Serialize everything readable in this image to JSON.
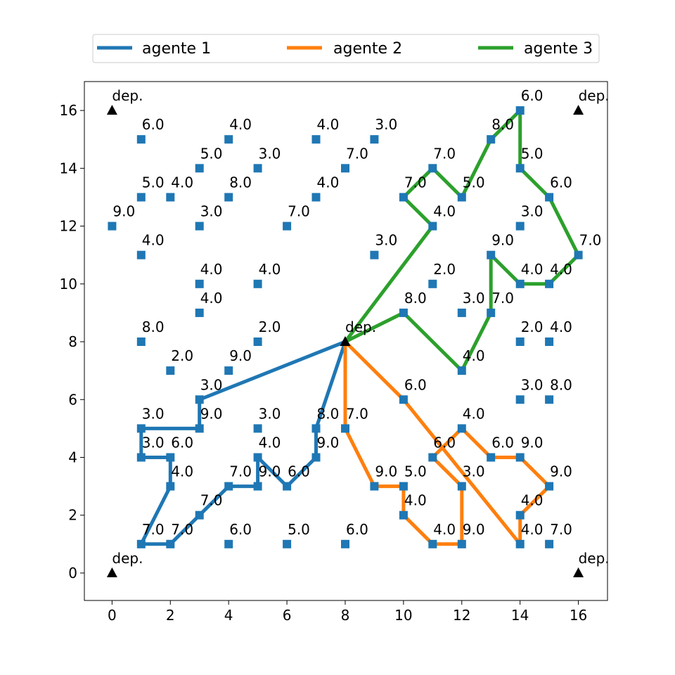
{
  "chart_data": {
    "type": "scatter",
    "xlim": [
      -0.95,
      17.0
    ],
    "ylim": [
      -0.95,
      17.0
    ],
    "x_ticks": [
      "0",
      "2",
      "4",
      "6",
      "8",
      "10",
      "12",
      "14",
      "16"
    ],
    "y_ticks": [
      "0",
      "2",
      "4",
      "6",
      "8",
      "10",
      "12",
      "14",
      "16"
    ],
    "grid": false,
    "legend_position": "top",
    "depots": [
      {
        "x": 0,
        "y": 16,
        "label": "dep."
      },
      {
        "x": 16,
        "y": 16,
        "label": "dep."
      },
      {
        "x": 8,
        "y": 8,
        "label": "dep."
      },
      {
        "x": 0,
        "y": 0,
        "label": "dep."
      },
      {
        "x": 16,
        "y": 0,
        "label": "dep."
      }
    ],
    "points": [
      {
        "x": 1,
        "y": 15,
        "label": "6.0"
      },
      {
        "x": 4,
        "y": 15,
        "label": "4.0"
      },
      {
        "x": 7,
        "y": 15,
        "label": "4.0"
      },
      {
        "x": 9,
        "y": 15,
        "label": "3.0"
      },
      {
        "x": 13,
        "y": 15,
        "label": "8.0"
      },
      {
        "x": 14,
        "y": 16,
        "label": "6.0"
      },
      {
        "x": 3,
        "y": 14,
        "label": "5.0"
      },
      {
        "x": 5,
        "y": 14,
        "label": "3.0"
      },
      {
        "x": 8,
        "y": 14,
        "label": "7.0"
      },
      {
        "x": 11,
        "y": 14,
        "label": "7.0"
      },
      {
        "x": 14,
        "y": 14,
        "label": "5.0"
      },
      {
        "x": 1,
        "y": 13,
        "label": "5.0"
      },
      {
        "x": 2,
        "y": 13,
        "label": "4.0"
      },
      {
        "x": 4,
        "y": 13,
        "label": "8.0"
      },
      {
        "x": 7,
        "y": 13,
        "label": "4.0"
      },
      {
        "x": 10,
        "y": 13,
        "label": "7.0"
      },
      {
        "x": 12,
        "y": 13,
        "label": "5.0"
      },
      {
        "x": 15,
        "y": 13,
        "label": "6.0"
      },
      {
        "x": 0,
        "y": 12,
        "label": "9.0"
      },
      {
        "x": 3,
        "y": 12,
        "label": "3.0"
      },
      {
        "x": 6,
        "y": 12,
        "label": "7.0"
      },
      {
        "x": 11,
        "y": 12,
        "label": "4.0"
      },
      {
        "x": 14,
        "y": 12,
        "label": "3.0"
      },
      {
        "x": 1,
        "y": 11,
        "label": "4.0"
      },
      {
        "x": 9,
        "y": 11,
        "label": "3.0"
      },
      {
        "x": 13,
        "y": 11,
        "label": "9.0"
      },
      {
        "x": 16,
        "y": 11,
        "label": "7.0"
      },
      {
        "x": 3,
        "y": 10,
        "label": "4.0"
      },
      {
        "x": 5,
        "y": 10,
        "label": "4.0"
      },
      {
        "x": 11,
        "y": 10,
        "label": "2.0"
      },
      {
        "x": 14,
        "y": 10,
        "label": "4.0"
      },
      {
        "x": 15,
        "y": 10,
        "label": "4.0"
      },
      {
        "x": 3,
        "y": 9,
        "label": "4.0"
      },
      {
        "x": 10,
        "y": 9,
        "label": "8.0"
      },
      {
        "x": 12,
        "y": 9,
        "label": "3.0"
      },
      {
        "x": 13,
        "y": 9,
        "label": "7.0"
      },
      {
        "x": 1,
        "y": 8,
        "label": "8.0"
      },
      {
        "x": 5,
        "y": 8,
        "label": "2.0"
      },
      {
        "x": 14,
        "y": 8,
        "label": "2.0"
      },
      {
        "x": 15,
        "y": 8,
        "label": "4.0"
      },
      {
        "x": 2,
        "y": 7,
        "label": "2.0"
      },
      {
        "x": 4,
        "y": 7,
        "label": "9.0"
      },
      {
        "x": 12,
        "y": 7,
        "label": "4.0"
      },
      {
        "x": 3,
        "y": 6,
        "label": "3.0"
      },
      {
        "x": 10,
        "y": 6,
        "label": "6.0"
      },
      {
        "x": 14,
        "y": 6,
        "label": "3.0"
      },
      {
        "x": 15,
        "y": 6,
        "label": "8.0"
      },
      {
        "x": 1,
        "y": 5,
        "label": "3.0"
      },
      {
        "x": 3,
        "y": 5,
        "label": "9.0"
      },
      {
        "x": 5,
        "y": 5,
        "label": "3.0"
      },
      {
        "x": 7,
        "y": 5,
        "label": "8.0"
      },
      {
        "x": 8,
        "y": 5,
        "label": "7.0"
      },
      {
        "x": 12,
        "y": 5,
        "label": "4.0"
      },
      {
        "x": 1,
        "y": 4,
        "label": "3.0"
      },
      {
        "x": 2,
        "y": 4,
        "label": "6.0"
      },
      {
        "x": 5,
        "y": 4,
        "label": "4.0"
      },
      {
        "x": 7,
        "y": 4,
        "label": "9.0"
      },
      {
        "x": 11,
        "y": 4,
        "label": "6.0"
      },
      {
        "x": 13,
        "y": 4,
        "label": "6.0"
      },
      {
        "x": 14,
        "y": 4,
        "label": "9.0"
      },
      {
        "x": 2,
        "y": 3,
        "label": "4.0"
      },
      {
        "x": 4,
        "y": 3,
        "label": "7.0"
      },
      {
        "x": 5,
        "y": 3,
        "label": "9.0"
      },
      {
        "x": 6,
        "y": 3,
        "label": "6.0"
      },
      {
        "x": 9,
        "y": 3,
        "label": "9.0"
      },
      {
        "x": 10,
        "y": 3,
        "label": "5.0"
      },
      {
        "x": 12,
        "y": 3,
        "label": "3.0"
      },
      {
        "x": 15,
        "y": 3,
        "label": "9.0"
      },
      {
        "x": 3,
        "y": 2,
        "label": "7.0"
      },
      {
        "x": 10,
        "y": 2,
        "label": "4.0"
      },
      {
        "x": 14,
        "y": 2,
        "label": "4.0"
      },
      {
        "x": 1,
        "y": 1,
        "label": "7.0"
      },
      {
        "x": 2,
        "y": 1,
        "label": "7.0"
      },
      {
        "x": 4,
        "y": 1,
        "label": "6.0"
      },
      {
        "x": 6,
        "y": 1,
        "label": "5.0"
      },
      {
        "x": 8,
        "y": 1,
        "label": "6.0"
      },
      {
        "x": 11,
        "y": 1,
        "label": "4.0"
      },
      {
        "x": 12,
        "y": 1,
        "label": "9.0"
      },
      {
        "x": 14,
        "y": 1,
        "label": "4.0"
      },
      {
        "x": 15,
        "y": 1,
        "label": "7.0"
      }
    ],
    "routes": [
      {
        "name": "agente 1",
        "color": "#1f77b4",
        "path": [
          [
            8,
            8
          ],
          [
            3,
            6
          ],
          [
            3,
            5
          ],
          [
            1,
            5
          ],
          [
            1,
            4
          ],
          [
            2,
            4
          ],
          [
            2,
            3
          ],
          [
            1,
            1
          ],
          [
            2,
            1
          ],
          [
            3,
            2
          ],
          [
            4,
            3
          ],
          [
            5,
            3
          ],
          [
            5,
            4
          ],
          [
            6,
            3
          ],
          [
            7,
            4
          ],
          [
            7,
            5
          ],
          [
            8,
            8
          ]
        ]
      },
      {
        "name": "agente 2",
        "color": "#ff7f0e",
        "path": [
          [
            8,
            8
          ],
          [
            8,
            5
          ],
          [
            9,
            3
          ],
          [
            10,
            3
          ],
          [
            10,
            2
          ],
          [
            11,
            1
          ],
          [
            12,
            1
          ],
          [
            12,
            3
          ],
          [
            11,
            4
          ],
          [
            12,
            5
          ],
          [
            13,
            4
          ],
          [
            14,
            4
          ],
          [
            15,
            3
          ],
          [
            14,
            2
          ],
          [
            14,
            1
          ],
          [
            10,
            6
          ],
          [
            8,
            8
          ]
        ]
      },
      {
        "name": "agente 3",
        "color": "#2ca02c",
        "path": [
          [
            8,
            8
          ],
          [
            11,
            12
          ],
          [
            10,
            13
          ],
          [
            11,
            14
          ],
          [
            12,
            13
          ],
          [
            13,
            15
          ],
          [
            14,
            16
          ],
          [
            14,
            14
          ],
          [
            15,
            13
          ],
          [
            16,
            11
          ],
          [
            15,
            10
          ],
          [
            14,
            10
          ],
          [
            13,
            11
          ],
          [
            13,
            9
          ],
          [
            12,
            7
          ],
          [
            10,
            9
          ],
          [
            8,
            8
          ]
        ]
      }
    ]
  }
}
